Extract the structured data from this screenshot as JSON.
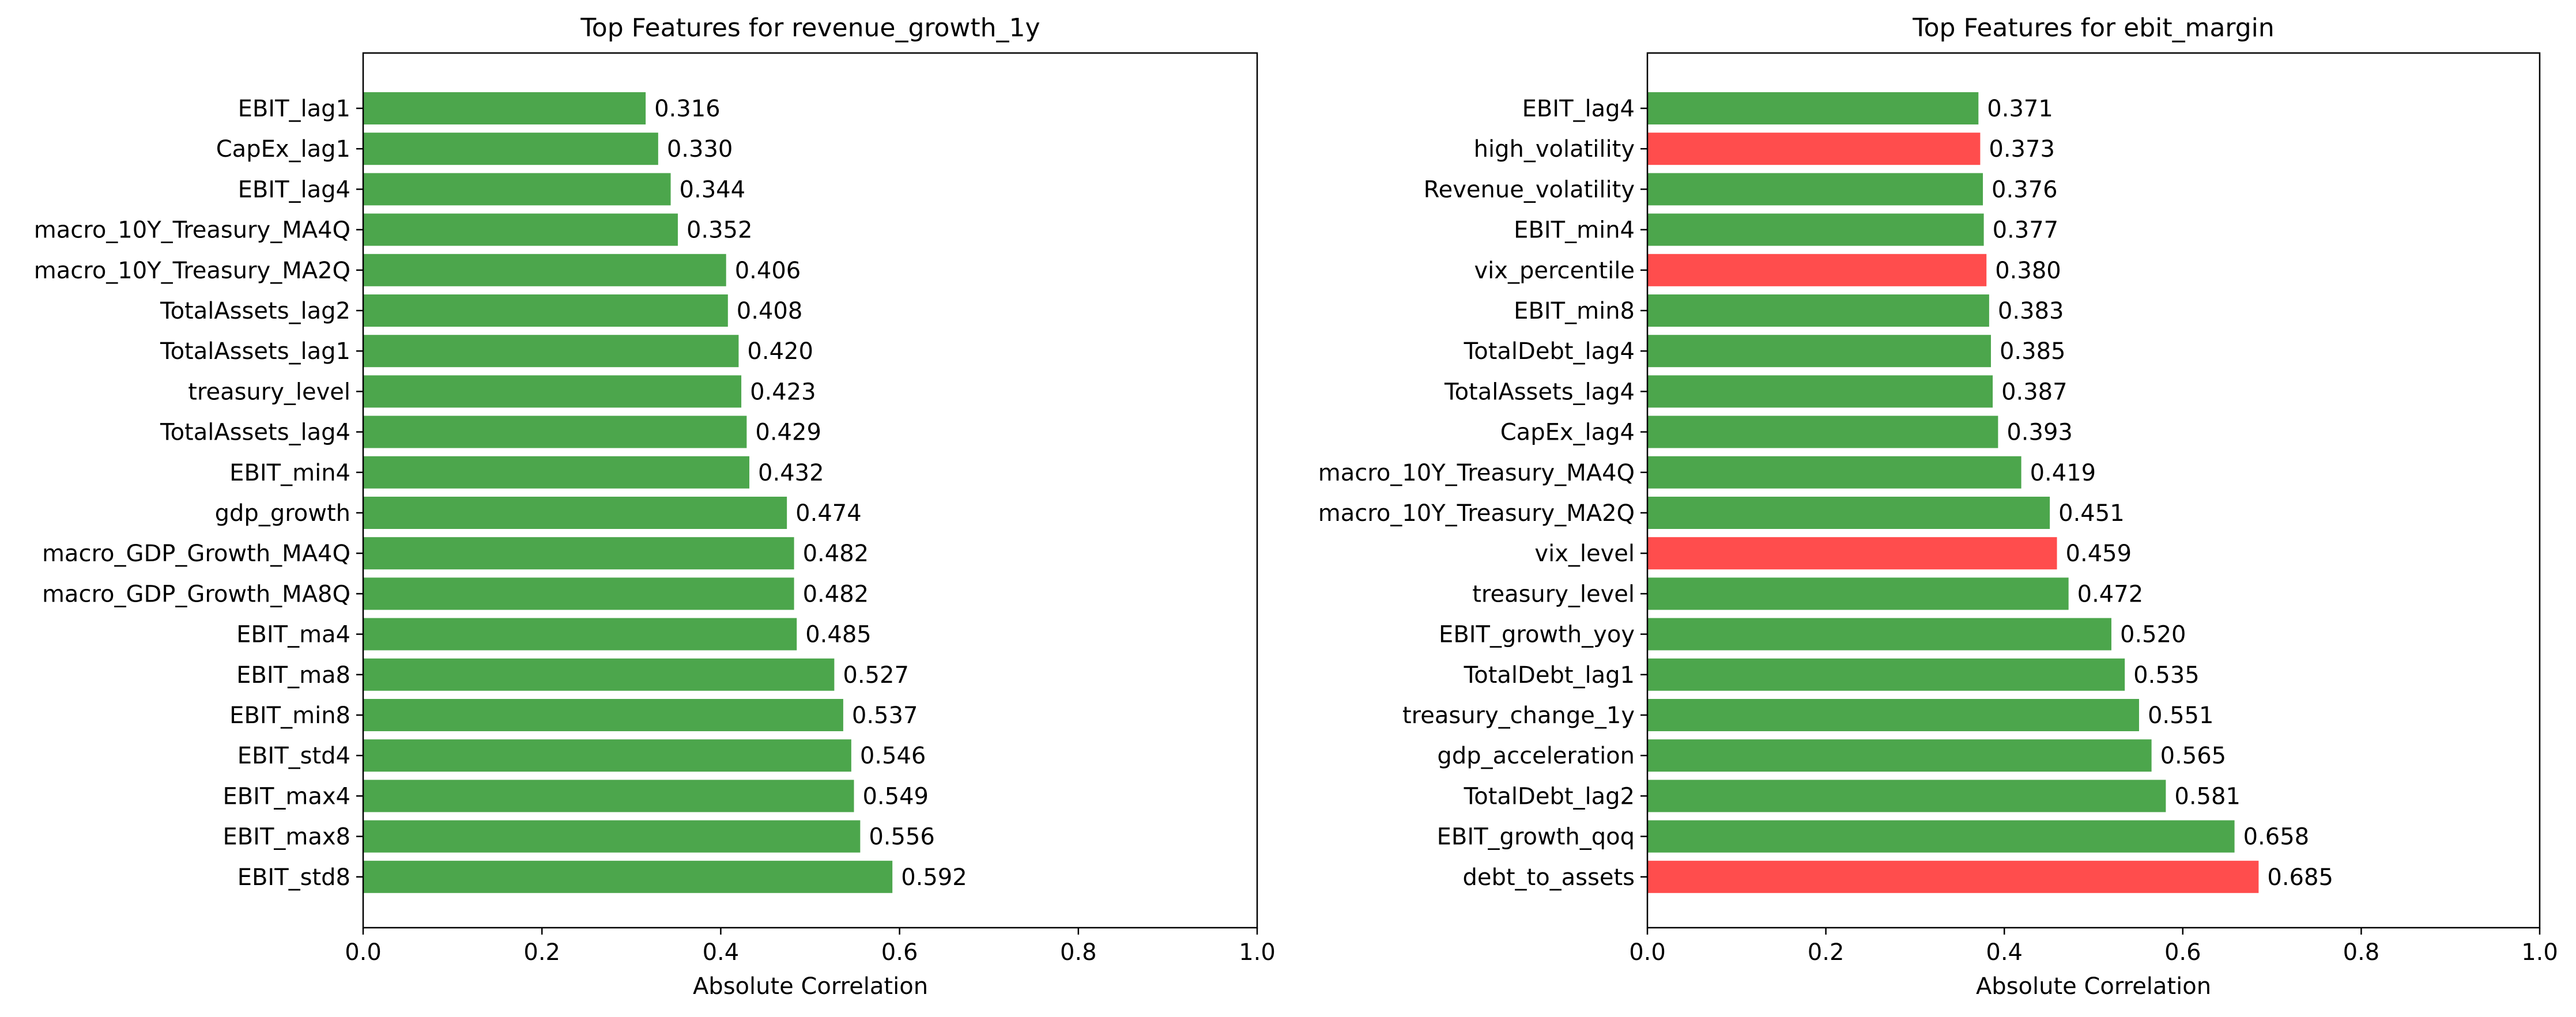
{
  "colors": {
    "positive": "#4ca64c",
    "negative": "#ff4d4d"
  },
  "chart_data": [
    {
      "type": "bar",
      "orientation": "horizontal",
      "title": "Top Features for revenue_growth_1y",
      "xlabel": "Absolute Correlation",
      "ylabel": "",
      "xlim": [
        0,
        1.0
      ],
      "xticks": [
        "0.0",
        "0.2",
        "0.4",
        "0.6",
        "0.8",
        "1.0"
      ],
      "grid": false,
      "categories": [
        "EBIT_lag1",
        "CapEx_lag1",
        "EBIT_lag4",
        "macro_10Y_Treasury_MA4Q",
        "macro_10Y_Treasury_MA2Q",
        "TotalAssets_lag2",
        "TotalAssets_lag1",
        "treasury_level",
        "TotalAssets_lag4",
        "EBIT_min4",
        "gdp_growth",
        "macro_GDP_Growth_MA4Q",
        "macro_GDP_Growth_MA8Q",
        "EBIT_ma4",
        "EBIT_ma8",
        "EBIT_min8",
        "EBIT_std4",
        "EBIT_max4",
        "EBIT_max8",
        "EBIT_std8"
      ],
      "values": [
        0.316,
        0.33,
        0.344,
        0.352,
        0.406,
        0.408,
        0.42,
        0.423,
        0.429,
        0.432,
        0.474,
        0.482,
        0.482,
        0.485,
        0.527,
        0.537,
        0.546,
        0.549,
        0.556,
        0.592
      ],
      "value_labels": [
        "0.316",
        "0.330",
        "0.344",
        "0.352",
        "0.406",
        "0.408",
        "0.420",
        "0.423",
        "0.429",
        "0.432",
        "0.474",
        "0.482",
        "0.482",
        "0.485",
        "0.527",
        "0.537",
        "0.546",
        "0.549",
        "0.556",
        "0.592"
      ],
      "bar_colors": [
        "positive",
        "positive",
        "positive",
        "positive",
        "positive",
        "positive",
        "positive",
        "positive",
        "positive",
        "positive",
        "positive",
        "positive",
        "positive",
        "positive",
        "positive",
        "positive",
        "positive",
        "positive",
        "positive",
        "positive"
      ]
    },
    {
      "type": "bar",
      "orientation": "horizontal",
      "title": "Top Features for ebit_margin",
      "xlabel": "Absolute Correlation",
      "ylabel": "",
      "xlim": [
        0,
        1.0
      ],
      "xticks": [
        "0.0",
        "0.2",
        "0.4",
        "0.6",
        "0.8",
        "1.0"
      ],
      "grid": false,
      "categories": [
        "EBIT_lag4",
        "high_volatility",
        "Revenue_volatility",
        "EBIT_min4",
        "vix_percentile",
        "EBIT_min8",
        "TotalDebt_lag4",
        "TotalAssets_lag4",
        "CapEx_lag4",
        "macro_10Y_Treasury_MA4Q",
        "macro_10Y_Treasury_MA2Q",
        "vix_level",
        "treasury_level",
        "EBIT_growth_yoy",
        "TotalDebt_lag1",
        "treasury_change_1y",
        "gdp_acceleration",
        "TotalDebt_lag2",
        "EBIT_growth_qoq",
        "debt_to_assets"
      ],
      "values": [
        0.371,
        0.373,
        0.376,
        0.377,
        0.38,
        0.383,
        0.385,
        0.387,
        0.393,
        0.419,
        0.451,
        0.459,
        0.472,
        0.52,
        0.535,
        0.551,
        0.565,
        0.581,
        0.658,
        0.685
      ],
      "value_labels": [
        "0.371",
        "0.373",
        "0.376",
        "0.377",
        "0.380",
        "0.383",
        "0.385",
        "0.387",
        "0.393",
        "0.419",
        "0.451",
        "0.459",
        "0.472",
        "0.520",
        "0.535",
        "0.551",
        "0.565",
        "0.581",
        "0.658",
        "0.685"
      ],
      "bar_colors": [
        "positive",
        "negative",
        "positive",
        "positive",
        "negative",
        "positive",
        "positive",
        "positive",
        "positive",
        "positive",
        "positive",
        "negative",
        "positive",
        "positive",
        "positive",
        "positive",
        "positive",
        "positive",
        "positive",
        "negative"
      ]
    }
  ]
}
